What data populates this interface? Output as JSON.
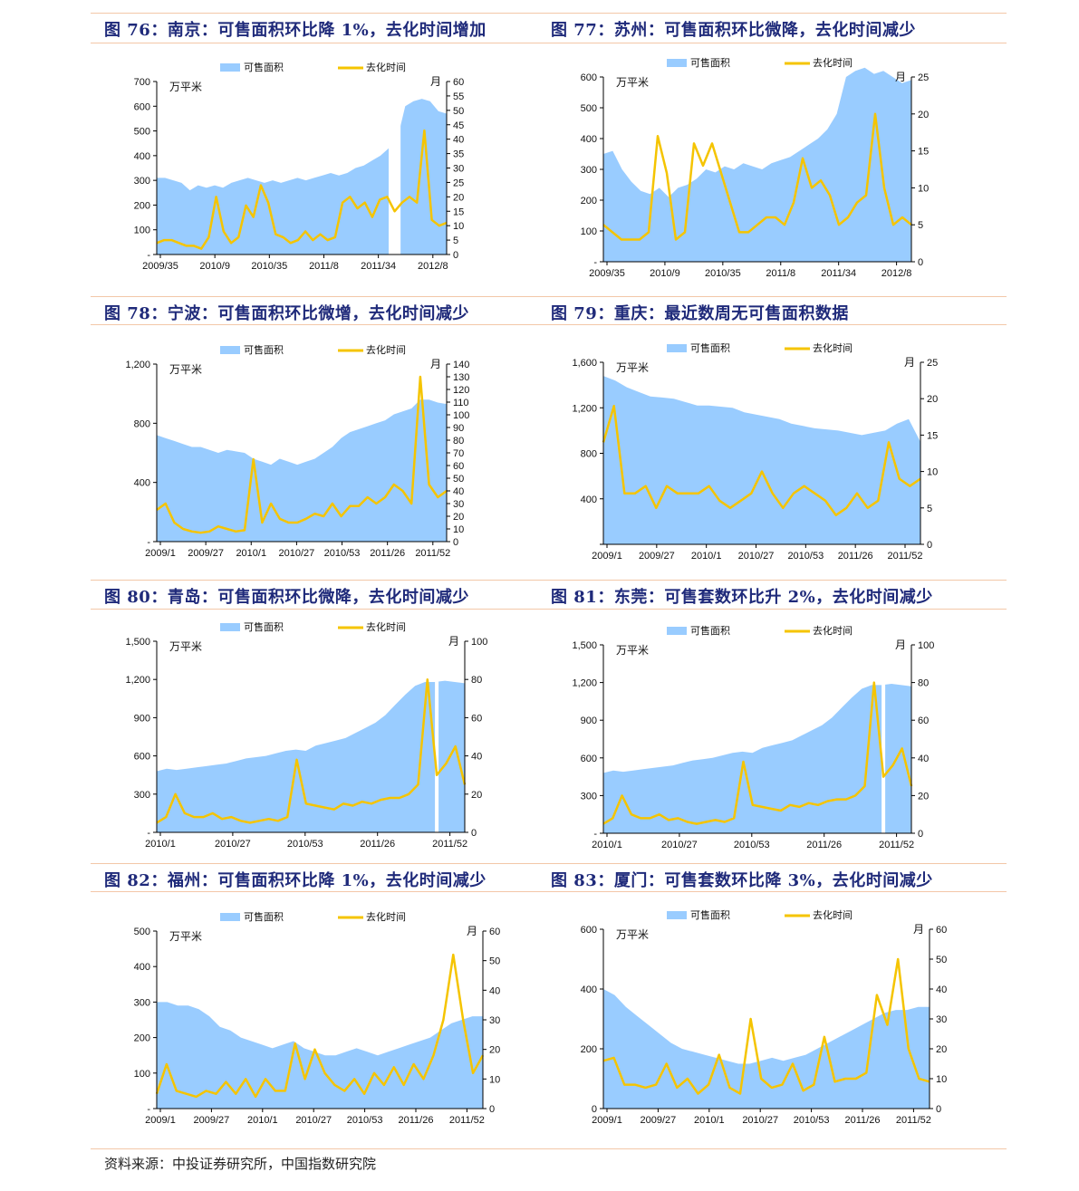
{
  "colors": {
    "area": "#99ccff",
    "line": "#f5c400",
    "title": "#1f2a7a",
    "rule": "#f3c7a8"
  },
  "source": "资料来源：中投证券研究所，中国指数研究院",
  "charts": [
    {
      "id": "76",
      "title": "图 76：南京：可售面积环比降 1%，去化时间增加",
      "chart_data": {
        "type": "area+line",
        "legend": [
          "可售面积",
          "去化时间"
        ],
        "left_unit": "万平米",
        "right_unit": "月",
        "left_ticks": [
          "-",
          "100",
          "200",
          "300",
          "400",
          "500",
          "600",
          "700"
        ],
        "left_max": 700,
        "right_ticks": [
          "0",
          "5",
          "10",
          "15",
          "20",
          "25",
          "30",
          "35",
          "40",
          "45",
          "50",
          "55",
          "60"
        ],
        "right_max": 60,
        "x_labels": [
          "2009/35",
          "2010/9",
          "2010/35",
          "2011/8",
          "2011/34",
          "2012/8"
        ],
        "area": [
          310,
          310,
          300,
          290,
          260,
          280,
          270,
          280,
          270,
          290,
          300,
          310,
          300,
          290,
          300,
          290,
          300,
          310,
          300,
          310,
          320,
          330,
          320,
          330,
          350,
          360,
          380,
          400,
          430,
          460,
          600,
          620,
          630,
          620,
          580,
          570
        ],
        "gap": [
          28,
          29
        ],
        "line": [
          4,
          5,
          5,
          4,
          3,
          3,
          2,
          6,
          20,
          8,
          4,
          6,
          17,
          13,
          24,
          18,
          7,
          6,
          4,
          5,
          8,
          5,
          7,
          5,
          6,
          18,
          20,
          16,
          18,
          13,
          19,
          20,
          15,
          18,
          20,
          18,
          43,
          12,
          10,
          11
        ]
      }
    },
    {
      "id": "77",
      "title": "图 77：苏州：可售面积环比微降，去化时间减少",
      "chart_data": {
        "type": "area+line",
        "legend": [
          "可售面积",
          "去化时间"
        ],
        "left_unit": "万平米",
        "right_unit": "月",
        "left_ticks": [
          "-",
          "100",
          "200",
          "300",
          "400",
          "500",
          "600"
        ],
        "left_max": 600,
        "right_ticks": [
          "0",
          "5",
          "10",
          "15",
          "20",
          "25"
        ],
        "right_max": 25,
        "x_labels": [
          "2009/35",
          "2010/9",
          "2010/35",
          "2011/8",
          "2011/34",
          "2012/8"
        ],
        "area": [
          350,
          360,
          300,
          260,
          230,
          220,
          240,
          210,
          240,
          250,
          270,
          300,
          290,
          310,
          300,
          320,
          310,
          300,
          320,
          330,
          340,
          360,
          380,
          400,
          430,
          480,
          600,
          620,
          630,
          610,
          620,
          600,
          580,
          590
        ],
        "gap": [],
        "line": [
          5,
          4,
          3,
          3,
          3,
          4,
          17,
          12,
          3,
          4,
          16,
          13,
          16,
          12,
          8,
          4,
          4,
          5,
          6,
          6,
          5,
          8,
          14,
          10,
          11,
          9,
          5,
          6,
          8,
          9,
          20,
          10,
          5,
          6,
          5
        ]
      }
    },
    {
      "id": "78",
      "title": "图 78：宁波：可售面积环比微增，去化时间减少",
      "chart_data": {
        "type": "area+line",
        "legend": [
          "可售面积",
          "去化时间"
        ],
        "left_unit": "万平米",
        "right_unit": "月",
        "left_ticks": [
          "-",
          "400",
          "800",
          "1,200"
        ],
        "left_max": 1200,
        "right_ticks": [
          "0",
          "10",
          "20",
          "30",
          "40",
          "50",
          "60",
          "70",
          "80",
          "90",
          "100",
          "110",
          "120",
          "130",
          "140"
        ],
        "right_max": 140,
        "x_labels": [
          "2009/1",
          "2009/27",
          "2010/1",
          "2010/27",
          "2010/53",
          "2011/26",
          "2011/52"
        ],
        "area": [
          720,
          700,
          680,
          660,
          640,
          640,
          620,
          600,
          620,
          610,
          600,
          560,
          540,
          520,
          560,
          540,
          520,
          540,
          560,
          600,
          640,
          700,
          740,
          760,
          780,
          800,
          820,
          860,
          880,
          900,
          960,
          960,
          940,
          930
        ],
        "gap": [],
        "line": [
          25,
          30,
          15,
          10,
          8,
          7,
          8,
          12,
          10,
          8,
          9,
          65,
          15,
          30,
          18,
          15,
          15,
          18,
          22,
          20,
          30,
          20,
          28,
          28,
          35,
          30,
          35,
          45,
          40,
          30,
          130,
          45,
          35,
          40
        ]
      }
    },
    {
      "id": "79",
      "title": "图 79：重庆：最近数周无可售面积数据",
      "chart_data": {
        "type": "area+line",
        "legend": [
          "可售面积",
          "去化时间"
        ],
        "left_unit": "万平米",
        "right_unit": "月",
        "left_ticks": [
          "",
          "400",
          "800",
          "1,200",
          "1,600"
        ],
        "left_max": 1600,
        "right_ticks": [
          "0",
          "5",
          "10",
          "15",
          "20",
          "25"
        ],
        "right_max": 25,
        "x_labels": [
          "2009/1",
          "2009/27",
          "2010/1",
          "2010/27",
          "2010/53",
          "2011/26",
          "2011/52"
        ],
        "area": [
          1480,
          1440,
          1380,
          1340,
          1300,
          1290,
          1280,
          1250,
          1220,
          1220,
          1210,
          1200,
          1160,
          1140,
          1120,
          1100,
          1060,
          1040,
          1020,
          1010,
          1000,
          980,
          960,
          980,
          1000,
          1060,
          1100,
          900
        ],
        "gap": [],
        "line": [
          14,
          19,
          7,
          7,
          8,
          5,
          8,
          7,
          7,
          7,
          8,
          6,
          5,
          6,
          7,
          10,
          7,
          5,
          7,
          8,
          7,
          6,
          4,
          5,
          7,
          5,
          6,
          14,
          9,
          8,
          9
        ]
      }
    },
    {
      "id": "80",
      "title": "图 80：青岛：可售面积环比微降，去化时间减少",
      "chart_data": {
        "type": "area+line",
        "legend": [
          "可售面积",
          "去化时间"
        ],
        "left_unit": "万平米",
        "right_unit": "月",
        "left_ticks": [
          "-",
          "300",
          "600",
          "900",
          "1,200",
          "1,500"
        ],
        "left_max": 1500,
        "right_ticks": [
          "0",
          "20",
          "40",
          "60",
          "80",
          "100"
        ],
        "right_max": 100,
        "x_labels": [
          "2010/1",
          "2010/27",
          "2010/53",
          "2011/26",
          "2011/52"
        ],
        "area": [
          480,
          500,
          490,
          500,
          510,
          520,
          530,
          540,
          560,
          580,
          590,
          600,
          620,
          640,
          650,
          640,
          680,
          700,
          720,
          740,
          780,
          820,
          860,
          920,
          1000,
          1080,
          1150,
          1180,
          1180,
          1190,
          1180,
          1170
        ],
        "gap": [
          28,
          28
        ],
        "line": [
          5,
          8,
          20,
          10,
          8,
          8,
          10,
          7,
          8,
          6,
          5,
          6,
          7,
          6,
          8,
          38,
          15,
          14,
          13,
          12,
          15,
          14,
          16,
          15,
          17,
          18,
          18,
          20,
          25,
          80,
          30,
          36,
          45,
          25
        ]
      }
    },
    {
      "id": "81",
      "title": "图 81：东莞：可售套数环比升 2%，去化时间减少",
      "chart_data": {
        "type": "area+line",
        "legend": [
          "可售面积",
          "去化时间"
        ],
        "left_unit": "万平米",
        "right_unit": "月",
        "left_ticks": [
          "-",
          "300",
          "600",
          "900",
          "1,200",
          "1,500"
        ],
        "left_max": 1500,
        "right_ticks": [
          "0",
          "20",
          "40",
          "60",
          "80",
          "100"
        ],
        "right_max": 100,
        "x_labels": [
          "2010/1",
          "2010/27",
          "2010/53",
          "2011/26",
          "2011/52"
        ],
        "area": [
          480,
          500,
          490,
          500,
          510,
          520,
          530,
          540,
          560,
          580,
          590,
          600,
          620,
          640,
          650,
          640,
          680,
          700,
          720,
          740,
          780,
          820,
          860,
          920,
          1000,
          1080,
          1150,
          1180,
          1180,
          1190,
          1180,
          1170
        ],
        "gap": [
          28,
          28
        ],
        "line": [
          5,
          8,
          20,
          10,
          8,
          8,
          10,
          7,
          8,
          6,
          5,
          6,
          7,
          6,
          8,
          38,
          15,
          14,
          13,
          12,
          15,
          14,
          16,
          15,
          17,
          18,
          18,
          20,
          25,
          80,
          30,
          36,
          45,
          25
        ]
      }
    },
    {
      "id": "82",
      "title": "图 82：福州：可售面积环比降 1%，去化时间减少",
      "chart_data": {
        "type": "area+line",
        "legend": [
          "可售面积",
          "去化时间"
        ],
        "left_unit": "万平米",
        "right_unit": "月",
        "left_ticks": [
          "-",
          "100",
          "200",
          "300",
          "400",
          "500"
        ],
        "left_max": 500,
        "right_ticks": [
          "0",
          "10",
          "20",
          "30",
          "40",
          "50",
          "60"
        ],
        "right_max": 60,
        "x_labels": [
          "2009/1",
          "2009/27",
          "2010/1",
          "2010/27",
          "2010/53",
          "2011/26",
          "2011/52"
        ],
        "area": [
          300,
          300,
          290,
          290,
          280,
          260,
          230,
          220,
          200,
          190,
          180,
          170,
          180,
          190,
          170,
          160,
          150,
          150,
          160,
          170,
          160,
          150,
          160,
          170,
          180,
          190,
          200,
          220,
          240,
          250,
          260,
          260
        ],
        "gap": [],
        "line": [
          5,
          15,
          6,
          5,
          4,
          6,
          5,
          9,
          5,
          10,
          4,
          10,
          6,
          6,
          22,
          10,
          20,
          12,
          8,
          6,
          10,
          5,
          12,
          8,
          14,
          8,
          15,
          10,
          18,
          30,
          52,
          30,
          12,
          18
        ]
      }
    },
    {
      "id": "83",
      "title": "图 83：厦门：可售套数环比降 3%，去化时间减少",
      "chart_data": {
        "type": "area+line",
        "legend": [
          "可售面积",
          "去化时间"
        ],
        "left_unit": "万平米",
        "right_unit": "月",
        "left_ticks": [
          "0",
          "200",
          "400",
          "600"
        ],
        "left_max": 600,
        "right_ticks": [
          "0",
          "10",
          "20",
          "30",
          "40",
          "50",
          "60"
        ],
        "right_max": 60,
        "x_labels": [
          "2009/1",
          "2009/27",
          "2010/1",
          "2010/27",
          "2010/53",
          "2011/26",
          "2011/52"
        ],
        "area": [
          400,
          380,
          340,
          310,
          280,
          250,
          220,
          200,
          190,
          180,
          170,
          160,
          150,
          150,
          160,
          170,
          160,
          170,
          180,
          200,
          220,
          240,
          260,
          280,
          300,
          320,
          330,
          330,
          340,
          340
        ],
        "gap": [],
        "line": [
          16,
          17,
          8,
          8,
          7,
          8,
          15,
          7,
          10,
          5,
          8,
          18,
          7,
          5,
          30,
          10,
          7,
          8,
          15,
          6,
          8,
          24,
          9,
          10,
          10,
          12,
          38,
          28,
          50,
          20,
          10,
          9
        ]
      }
    }
  ]
}
